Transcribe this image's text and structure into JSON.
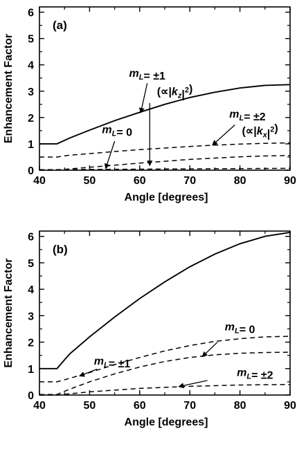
{
  "chart_data": [
    {
      "type": "line",
      "panel_label": "(a)",
      "xlabel": "Angle [degrees]",
      "ylabel": "Enhancement Factor",
      "xlim": [
        40,
        90
      ],
      "ylim": [
        0,
        6.2
      ],
      "xticks": [
        40,
        50,
        60,
        70,
        80,
        90
      ],
      "yticks": [
        0,
        1,
        2,
        3,
        4,
        5,
        6
      ],
      "series": [
        {
          "style": "solid",
          "x": [
            40,
            43.5,
            46,
            50,
            55,
            60,
            65,
            70,
            75,
            80,
            85,
            90
          ],
          "y": [
            1.0,
            1.0,
            1.22,
            1.52,
            1.88,
            2.2,
            2.5,
            2.76,
            2.96,
            3.12,
            3.22,
            3.25
          ]
        },
        {
          "style": "dashed",
          "x": [
            40,
            43.5,
            46,
            50,
            55,
            60,
            65,
            70,
            75,
            80,
            85,
            90
          ],
          "y": [
            0.5,
            0.5,
            0.57,
            0.63,
            0.71,
            0.78,
            0.84,
            0.9,
            0.95,
            0.99,
            1.02,
            1.04
          ]
        },
        {
          "style": "dashed",
          "x": [
            40,
            43.5,
            46,
            50,
            55,
            60,
            65,
            70,
            75,
            80,
            85,
            90
          ],
          "y": [
            0.0,
            0.0,
            0.05,
            0.11,
            0.19,
            0.27,
            0.34,
            0.41,
            0.46,
            0.51,
            0.54,
            0.56
          ]
        },
        {
          "style": "dashed",
          "x": [
            40,
            43.5,
            50,
            60,
            70,
            80,
            90
          ],
          "y": [
            0.02,
            0.02,
            0.03,
            0.04,
            0.05,
            0.06,
            0.07
          ]
        }
      ],
      "annotations": [
        {
          "parts": [
            {
              "t": "m",
              "it": true
            },
            {
              "t": "L",
              "sub": true,
              "it": true
            },
            {
              "t": "= ±1"
            }
          ],
          "x": 61.5,
          "y": 3.55,
          "anchor": "middle"
        },
        {
          "parts": [
            {
              "t": "(∝|"
            },
            {
              "t": "k",
              "it": true
            },
            {
              "t": "z",
              "sub": true,
              "it": true
            },
            {
              "t": "|"
            },
            {
              "t": "2",
              "sup": true
            },
            {
              "t": ")"
            }
          ],
          "x": 67,
          "y": 2.85,
          "anchor": "middle"
        },
        {
          "parts": [
            {
              "t": "m",
              "it": true
            },
            {
              "t": "L",
              "sub": true,
              "it": true
            },
            {
              "t": "= ±2"
            }
          ],
          "x": 81.5,
          "y": 2.0,
          "anchor": "middle"
        },
        {
          "parts": [
            {
              "t": "(∝|"
            },
            {
              "t": "k",
              "it": true
            },
            {
              "t": "x",
              "sub": true,
              "it": true
            },
            {
              "t": "|"
            },
            {
              "t": "2",
              "sup": true
            },
            {
              "t": ")"
            }
          ],
          "x": 84,
          "y": 1.35,
          "anchor": "middle"
        },
        {
          "parts": [
            {
              "t": "m",
              "it": true
            },
            {
              "t": "L",
              "sub": true,
              "it": true
            },
            {
              "t": "= 0"
            }
          ],
          "x": 55.5,
          "y": 1.4,
          "anchor": "middle"
        }
      ],
      "arrows": [
        {
          "from": [
            61.5,
            3.3
          ],
          "to": [
            60.2,
            2.18
          ]
        },
        {
          "from": [
            62.0,
            2.55
          ],
          "to": [
            62.0,
            0.18
          ]
        },
        {
          "from": [
            79.0,
            1.72
          ],
          "to": [
            74.5,
            0.95
          ]
        },
        {
          "from": [
            55.0,
            1.1
          ],
          "to": [
            53.2,
            0.06
          ]
        }
      ]
    },
    {
      "type": "line",
      "panel_label": "(b)",
      "xlabel": "Angle [degrees]",
      "ylabel": "Enhancement Factor",
      "xlim": [
        40,
        90
      ],
      "ylim": [
        0,
        6.2
      ],
      "xticks": [
        40,
        50,
        60,
        70,
        80,
        90
      ],
      "yticks": [
        0,
        1,
        2,
        3,
        4,
        5,
        6
      ],
      "series": [
        {
          "style": "solid",
          "x": [
            40,
            43.5,
            46,
            50,
            55,
            60,
            65,
            70,
            75,
            80,
            85,
            90
          ],
          "y": [
            1.0,
            1.0,
            1.55,
            2.2,
            2.95,
            3.65,
            4.28,
            4.85,
            5.33,
            5.72,
            6.0,
            6.15
          ]
        },
        {
          "style": "dashed",
          "x": [
            40,
            43.5,
            46,
            50,
            55,
            60,
            65,
            70,
            75,
            80,
            85,
            90
          ],
          "y": [
            0.5,
            0.5,
            0.63,
            0.85,
            1.15,
            1.42,
            1.67,
            1.87,
            2.03,
            2.13,
            2.2,
            2.22
          ]
        },
        {
          "style": "dashed",
          "x": [
            40,
            43.5,
            46,
            50,
            55,
            60,
            65,
            70,
            75,
            80,
            85,
            90
          ],
          "y": [
            0.02,
            0.02,
            0.22,
            0.5,
            0.8,
            1.06,
            1.27,
            1.42,
            1.52,
            1.58,
            1.61,
            1.62
          ]
        },
        {
          "style": "dashed",
          "x": [
            40,
            43.5,
            50,
            60,
            70,
            80,
            90
          ],
          "y": [
            0.0,
            0.0,
            0.12,
            0.25,
            0.33,
            0.38,
            0.4
          ]
        }
      ],
      "annotations": [
        {
          "parts": [
            {
              "t": "m",
              "it": true
            },
            {
              "t": "L",
              "sub": true,
              "it": true
            },
            {
              "t": "= ±1"
            }
          ],
          "x": 54.5,
          "y": 1.15,
          "anchor": "middle"
        },
        {
          "parts": [
            {
              "t": "m",
              "it": true
            },
            {
              "t": "L",
              "sub": true,
              "it": true
            },
            {
              "t": "= 0"
            }
          ],
          "x": 80,
          "y": 2.45,
          "anchor": "middle"
        },
        {
          "parts": [
            {
              "t": "m",
              "it": true
            },
            {
              "t": "L",
              "sub": true,
              "it": true
            },
            {
              "t": "= ±2"
            }
          ],
          "x": 83,
          "y": 0.72,
          "anchor": "middle"
        }
      ],
      "arrows": [
        {
          "from": [
            51.5,
            0.98
          ],
          "to": [
            48.0,
            0.72
          ]
        },
        {
          "from": [
            75.5,
            2.0
          ],
          "to": [
            72.5,
            1.45
          ]
        },
        {
          "from": [
            73.5,
            0.55
          ],
          "to": [
            67.8,
            0.32
          ]
        }
      ]
    }
  ]
}
